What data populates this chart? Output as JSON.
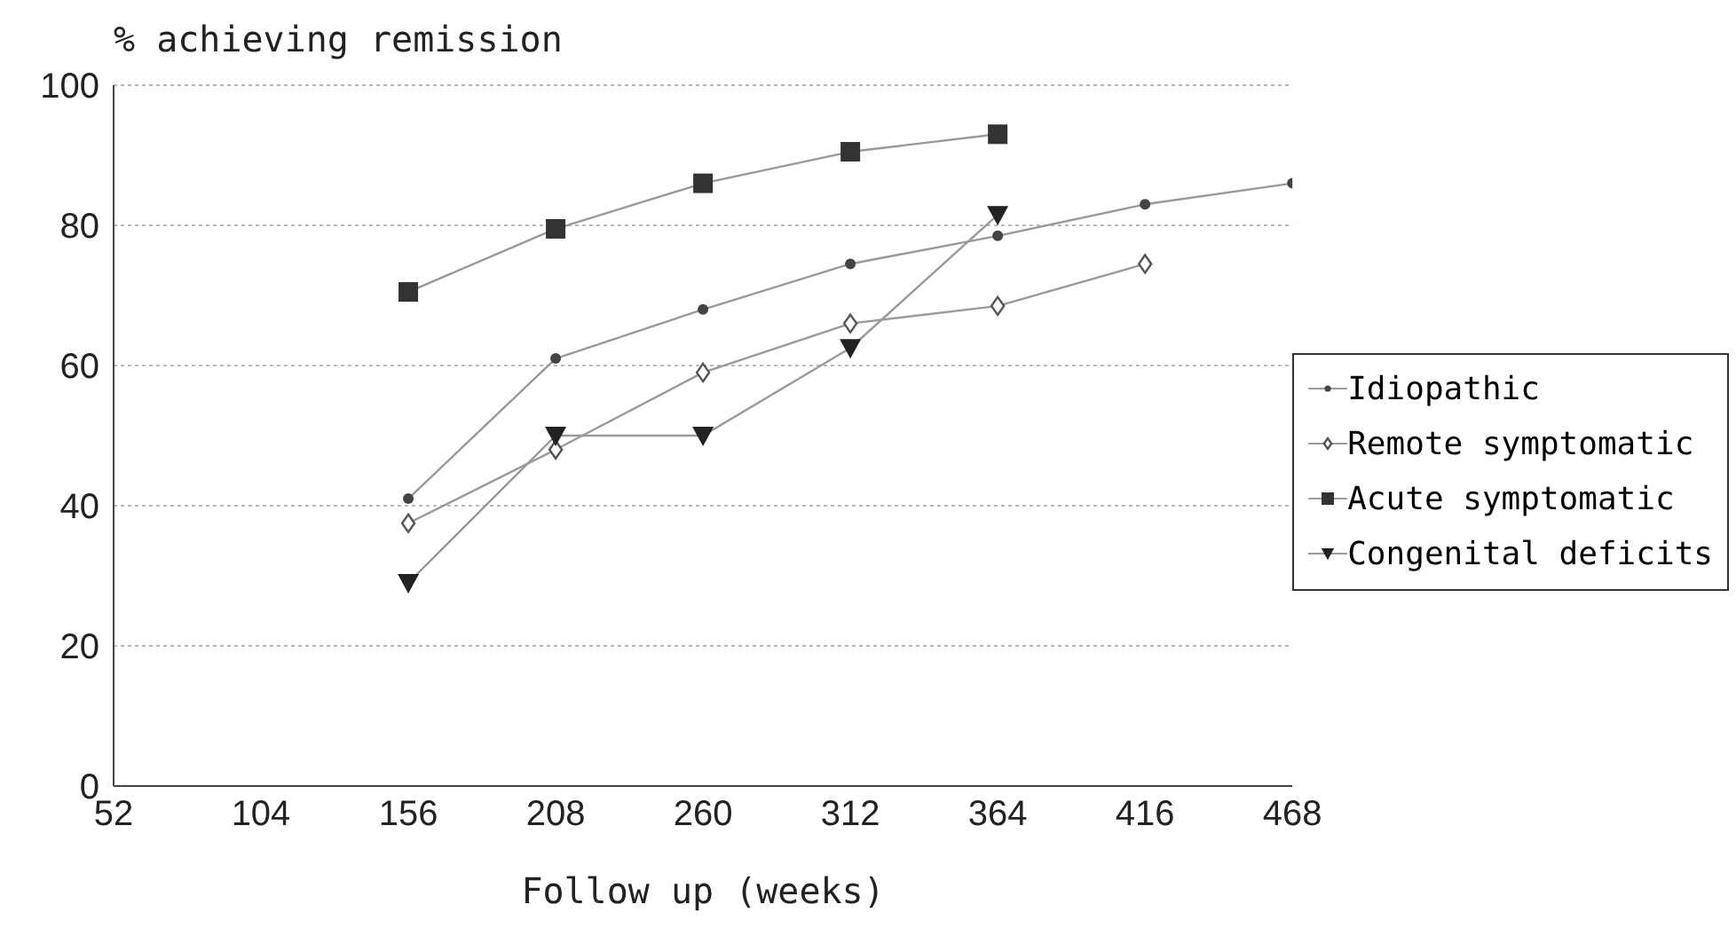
{
  "chart_data": {
    "type": "line",
    "ylabel": "% achieving remission",
    "xlabel": "Follow up (weeks)",
    "xlim": [
      52,
      468
    ],
    "xticks": [
      52,
      104,
      156,
      208,
      260,
      312,
      364,
      416,
      468
    ],
    "ylim": [
      0,
      100
    ],
    "yticks": [
      0,
      20,
      40,
      60,
      80,
      100
    ],
    "grid": "y",
    "legend": "right",
    "line_style": "solid",
    "series": [
      {
        "name": "Idiopathic",
        "color": "#444444",
        "marker": "circle",
        "x": [
          156,
          208,
          260,
          312,
          364,
          416,
          468
        ],
        "values": [
          41,
          61,
          68,
          74.5,
          78.5,
          83,
          86
        ]
      },
      {
        "name": "Remote symptomatic",
        "color": "#555555",
        "marker": "diamond",
        "x": [
          156,
          208,
          260,
          312,
          364,
          416
        ],
        "values": [
          37.5,
          48,
          59,
          66,
          68.5,
          74.5
        ]
      },
      {
        "name": "Acute symptomatic",
        "color": "#333333",
        "marker": "square",
        "x": [
          156,
          208,
          260,
          312,
          364
        ],
        "values": [
          70.5,
          79.5,
          86,
          90.5,
          93
        ]
      },
      {
        "name": "Congenital deficits",
        "color": "#222222",
        "marker": "triangle",
        "x": [
          156,
          208,
          260,
          312,
          364
        ],
        "values": [
          29,
          50,
          50,
          62.5,
          81.5
        ]
      }
    ]
  }
}
